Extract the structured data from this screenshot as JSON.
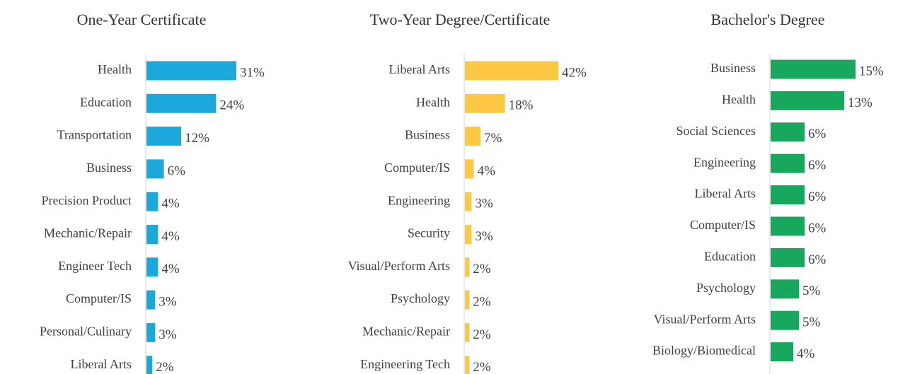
{
  "chart_data": [
    {
      "type": "bar",
      "orientation": "horizontal",
      "title": "One-Year Certificate",
      "color": "#1ba9dc",
      "xlim": [
        0,
        31
      ],
      "categories": [
        "Health",
        "Education",
        "Transportation",
        "Business",
        "Precision Product",
        "Mechanic/Repair",
        "Engineer Tech",
        "Computer/IS",
        "Personal/Culinary",
        "Liberal Arts"
      ],
      "values": [
        31,
        24,
        12,
        6,
        4,
        4,
        4,
        3,
        3,
        2
      ],
      "value_labels": [
        "31%",
        "24%",
        "12%",
        "6%",
        "4%",
        "4%",
        "4%",
        "3%",
        "3%",
        "2%"
      ]
    },
    {
      "type": "bar",
      "orientation": "horizontal",
      "title": "Two-Year Degree/Certificate",
      "color": "#fdc843",
      "xlim": [
        0,
        42
      ],
      "categories": [
        "Liberal Arts",
        "Health",
        "Business",
        "Computer/IS",
        "Engineering",
        "Security",
        "Visual/Perform Arts",
        "Psychology",
        "Mechanic/Repair",
        "Engineering Tech"
      ],
      "values": [
        42,
        18,
        7,
        4,
        3,
        3,
        2,
        2,
        2,
        2
      ],
      "value_labels": [
        "42%",
        "18%",
        "7%",
        "4%",
        "3%",
        "3%",
        "2%",
        "2%",
        "2%",
        "2%"
      ]
    },
    {
      "type": "bar",
      "orientation": "horizontal",
      "title": "Bachelor's Degree",
      "color": "#17a85d",
      "xlim": [
        0,
        15
      ],
      "categories": [
        "Business",
        "Health",
        "Social Sciences",
        "Engineering",
        "Liberal Arts",
        "Computer/IS",
        "Education",
        "Psychology",
        "Visual/Perform Arts",
        "Biology/Biomedical"
      ],
      "values": [
        15,
        13,
        6,
        6,
        6,
        6,
        6,
        5,
        5,
        4
      ],
      "value_labels": [
        "15%",
        "13%",
        "6%",
        "6%",
        "6%",
        "6%",
        "6%",
        "5%",
        "5%",
        "4%"
      ]
    }
  ]
}
